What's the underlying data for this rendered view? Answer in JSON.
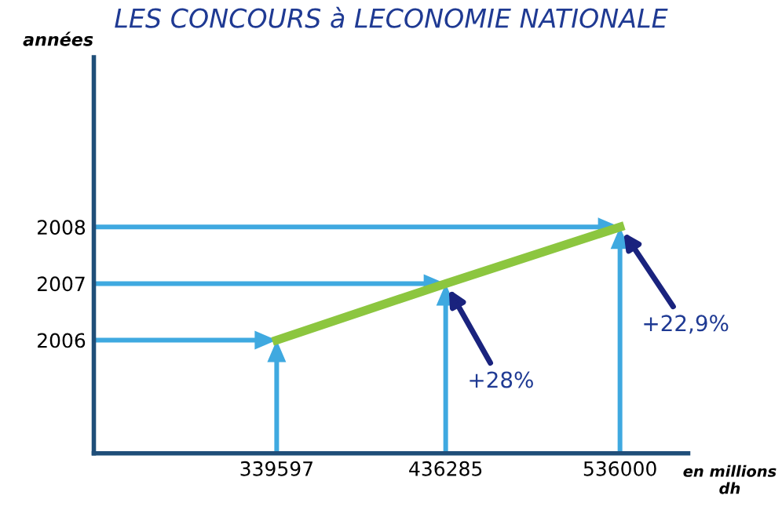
{
  "chart_data": {
    "type": "line",
    "title": "LES CONCOURS à LECONOMIE NATIONALE",
    "xlabel": "en millions\ndh",
    "ylabel": "années",
    "x": [
      339597,
      436285,
      536000
    ],
    "series": [
      {
        "color": "#8cc63f",
        "values": [
          2006,
          2007,
          2008
        ]
      }
    ],
    "xlim": [
      235000,
      575000
    ],
    "ylim": [
      2004,
      2011
    ],
    "xticks": [
      339597,
      436285,
      536000
    ],
    "yticks": [
      2006,
      2007,
      2008
    ],
    "grid": false,
    "legend": false,
    "marker": "none",
    "line_style": "solid",
    "annotations": [
      {
        "text": "+28%",
        "x": 436285,
        "y": 2007
      },
      {
        "text": "+22,9%",
        "x": 536000,
        "y": 2008
      }
    ]
  }
}
